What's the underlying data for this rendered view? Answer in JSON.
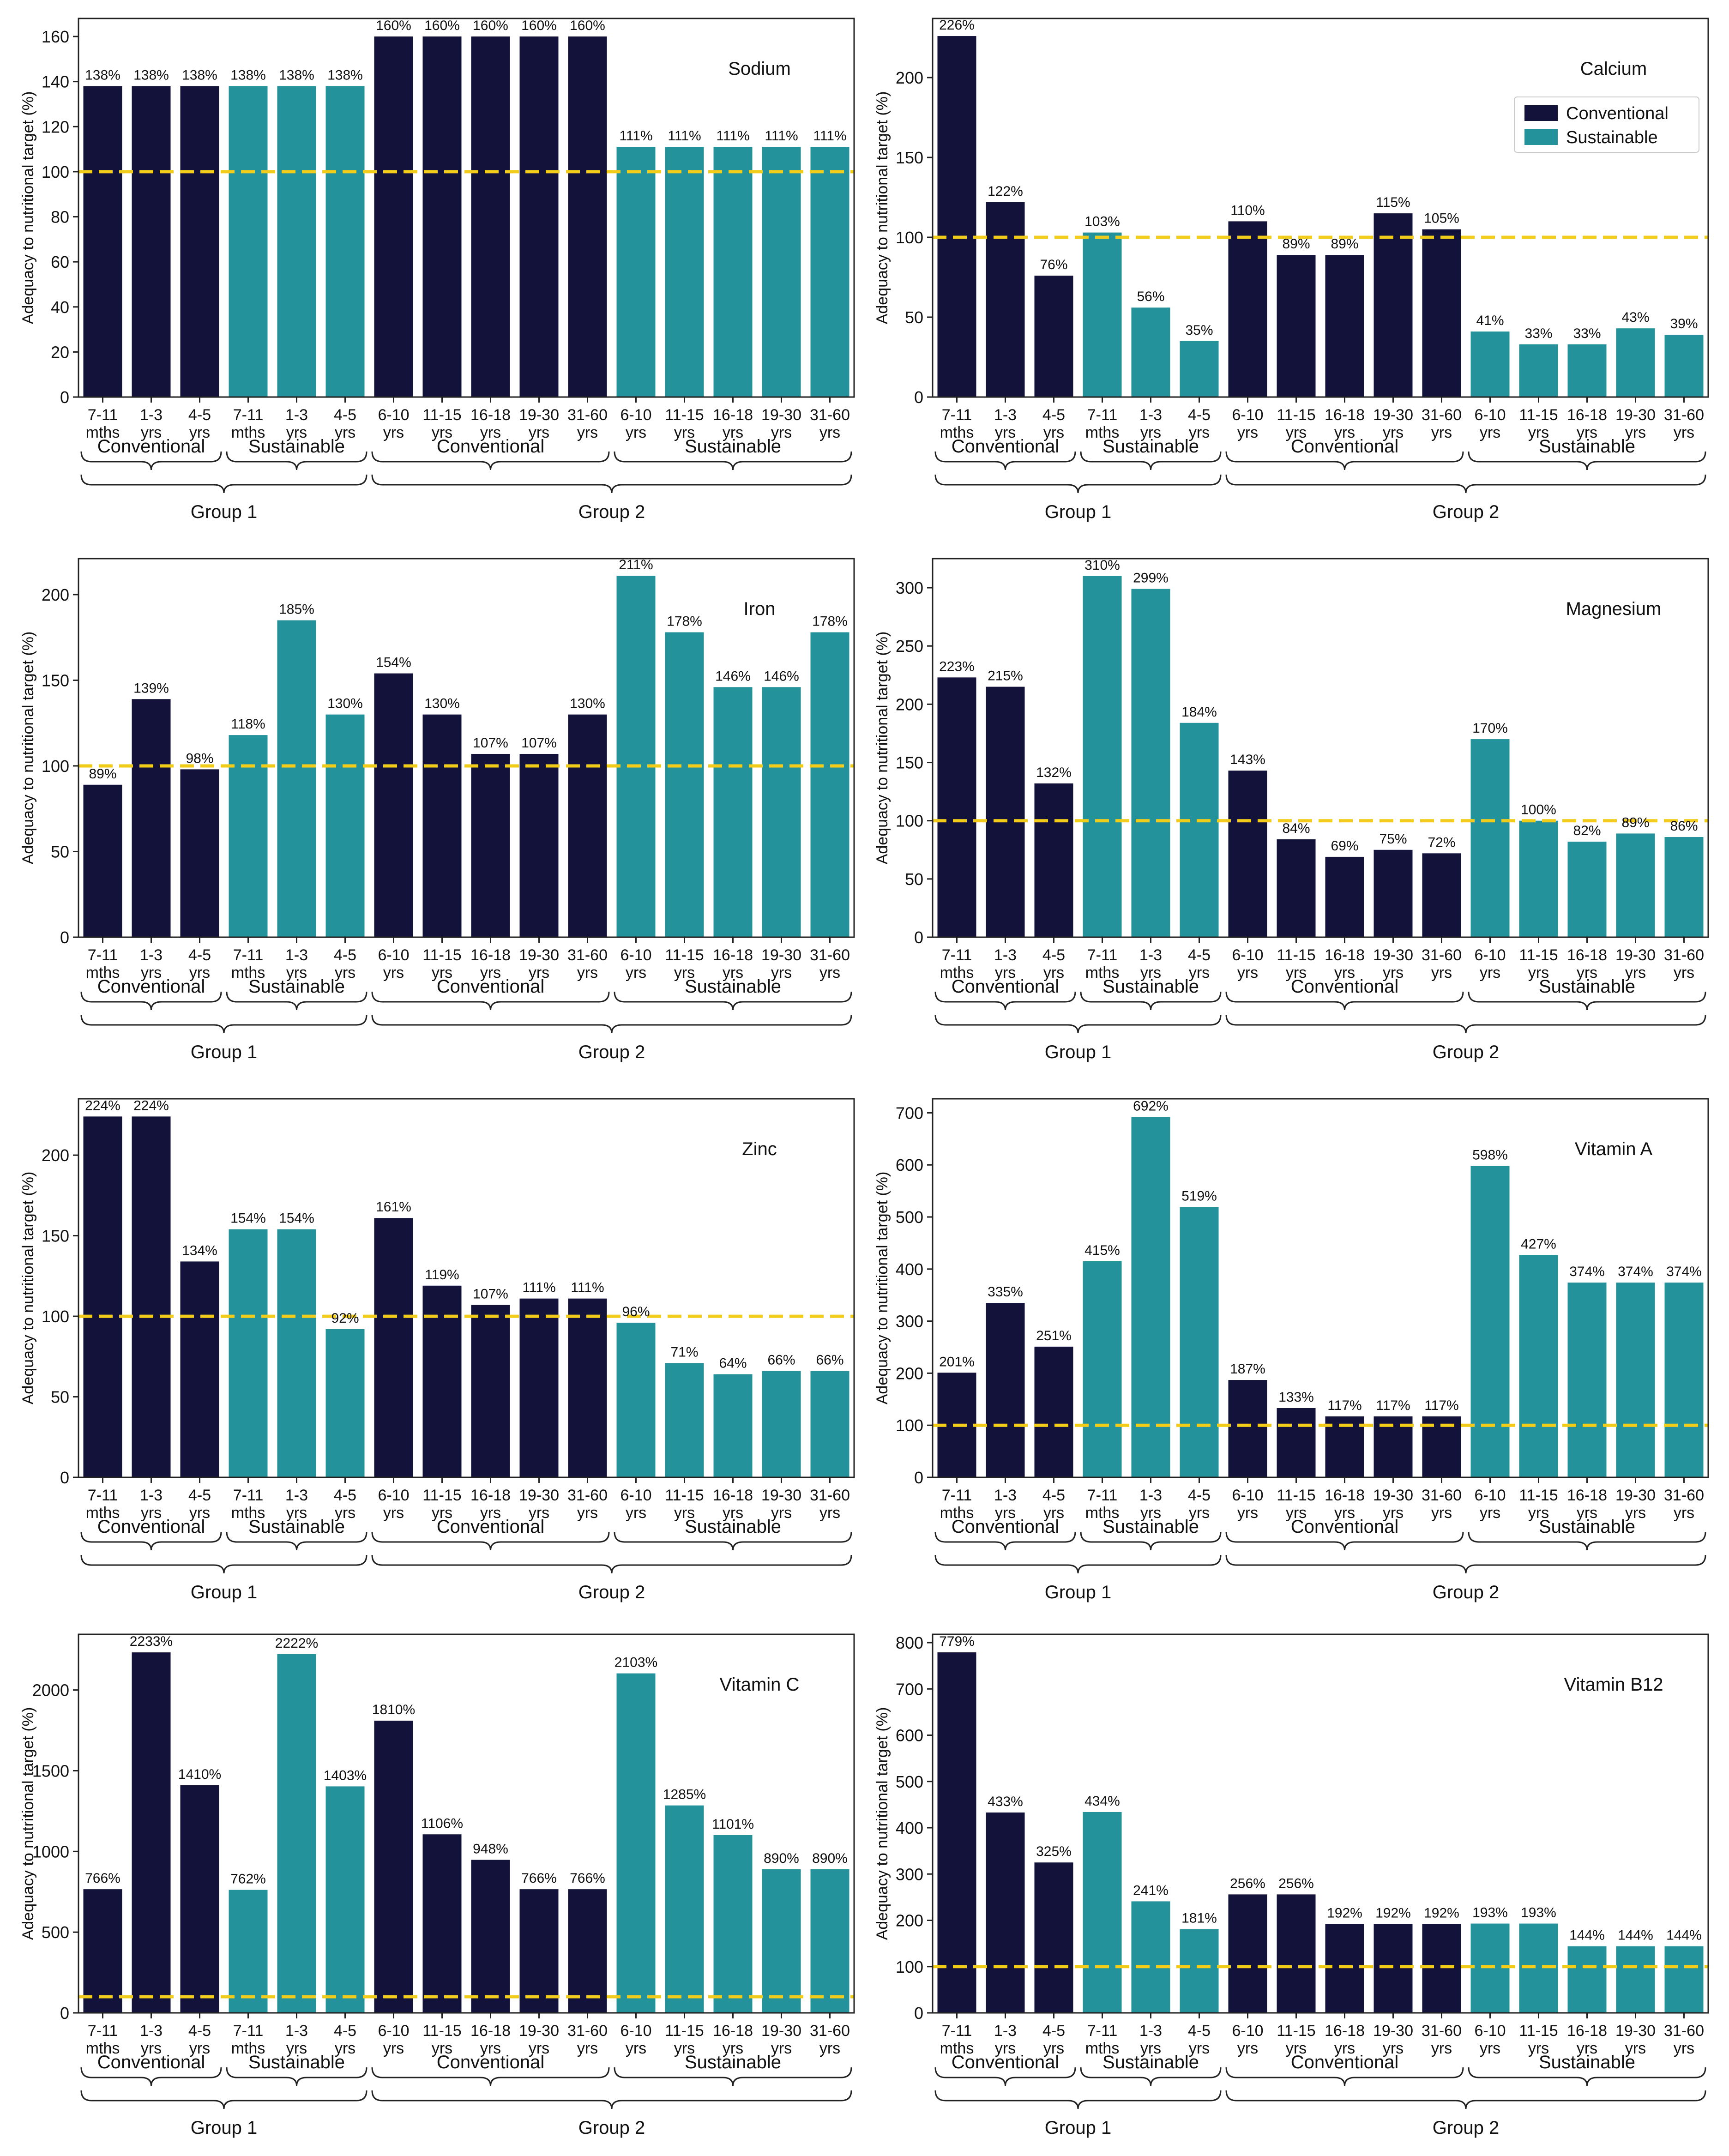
{
  "colors": {
    "conventional": "#12123a",
    "sustainable": "#23929b",
    "target_line": "#f2cc1b",
    "axis": "#222222"
  },
  "legend": {
    "conventional": "Conventional",
    "sustainable": "Sustainable"
  },
  "common": {
    "ylabel": "Adequacy to nutritional target (%)",
    "tick_lines": [
      [
        "7-11",
        "mths"
      ],
      [
        "1-3",
        "yrs"
      ],
      [
        "4-5",
        "yrs"
      ],
      [
        "7-11",
        "mths"
      ],
      [
        "1-3",
        "yrs"
      ],
      [
        "4-5",
        "yrs"
      ],
      [
        "6-10",
        "yrs"
      ],
      [
        "11-15",
        "yrs"
      ],
      [
        "16-18",
        "yrs"
      ],
      [
        "19-30",
        "yrs"
      ],
      [
        "31-60",
        "yrs"
      ],
      [
        "6-10",
        "yrs"
      ],
      [
        "11-15",
        "yrs"
      ],
      [
        "16-18",
        "yrs"
      ],
      [
        "19-30",
        "yrs"
      ],
      [
        "31-60",
        "yrs"
      ]
    ],
    "diet": [
      "conv",
      "conv",
      "conv",
      "sust",
      "sust",
      "sust",
      "conv",
      "conv",
      "conv",
      "conv",
      "conv",
      "sust",
      "sust",
      "sust",
      "sust",
      "sust"
    ],
    "subgroups": [
      {
        "label": "Conventional",
        "from": 0,
        "to": 2
      },
      {
        "label": "Sustainable",
        "from": 3,
        "to": 5
      },
      {
        "label": "Conventional",
        "from": 6,
        "to": 10
      },
      {
        "label": "Sustainable",
        "from": 11,
        "to": 15
      }
    ],
    "groups": [
      {
        "label": "Group 1",
        "from": 0,
        "to": 5
      },
      {
        "label": "Group 2",
        "from": 6,
        "to": 15
      }
    ]
  },
  "chart_data": [
    {
      "type": "bar",
      "title": "Sodium",
      "ylabel": "Adequacy to nutritional target (%)",
      "target": 100,
      "ylim": [
        0,
        168
      ],
      "yticks": [
        0,
        20,
        40,
        60,
        80,
        100,
        120,
        140,
        160
      ],
      "values": [
        138,
        138,
        138,
        138,
        138,
        138,
        160,
        160,
        160,
        160,
        160,
        111,
        111,
        111,
        111,
        111
      ],
      "labels": [
        "138%",
        "138%",
        "138%",
        "138%",
        "138%",
        "138%",
        "160%",
        "160%",
        "160%",
        "160%",
        "160%",
        "111%",
        "111%",
        "111%",
        "111%",
        "111%"
      ],
      "legend": false
    },
    {
      "type": "bar",
      "title": "Calcium",
      "ylabel": "Adequacy to nutritional target (%)",
      "target": 100,
      "ylim": [
        0,
        237
      ],
      "yticks": [
        0,
        50,
        100,
        150,
        200
      ],
      "values": [
        226,
        122,
        76,
        103,
        56,
        35,
        110,
        89,
        89,
        115,
        105,
        41,
        33,
        33,
        43,
        39
      ],
      "labels": [
        "226%",
        "122%",
        "76%",
        "103%",
        "56%",
        "35%",
        "110%",
        "89%",
        "89%",
        "115%",
        "105%",
        "41%",
        "33%",
        "33%",
        "43%",
        "39%"
      ],
      "legend": true
    },
    {
      "type": "bar",
      "title": "Iron",
      "ylabel": "Adequacy to nutritional target (%)",
      "target": 100,
      "ylim": [
        0,
        221
      ],
      "yticks": [
        0,
        50,
        100,
        150,
        200
      ],
      "values": [
        89,
        139,
        98,
        118,
        185,
        130,
        154,
        130,
        107,
        107,
        130,
        211,
        178,
        146,
        146,
        178
      ],
      "labels": [
        "89%",
        "139%",
        "98%",
        "118%",
        "185%",
        "130%",
        "154%",
        "130%",
        "107%",
        "107%",
        "130%",
        "211%",
        "178%",
        "146%",
        "146%",
        "178%"
      ],
      "legend": false
    },
    {
      "type": "bar",
      "title": "Magnesium",
      "ylabel": "Adequacy to nutritional target (%)",
      "target": 100,
      "ylim": [
        0,
        325
      ],
      "yticks": [
        0,
        50,
        100,
        150,
        200,
        250,
        300
      ],
      "values": [
        223,
        215,
        132,
        310,
        299,
        184,
        143,
        84,
        69,
        75,
        72,
        170,
        100,
        82,
        89,
        86
      ],
      "labels": [
        "223%",
        "215%",
        "132%",
        "310%",
        "299%",
        "184%",
        "143%",
        "84%",
        "69%",
        "75%",
        "72%",
        "170%",
        "100%",
        "82%",
        "89%",
        "86%"
      ],
      "legend": false
    },
    {
      "type": "bar",
      "title": "Zinc",
      "ylabel": "Adequacy to nutritional target (%)",
      "target": 100,
      "ylim": [
        0,
        235
      ],
      "yticks": [
        0,
        50,
        100,
        150,
        200
      ],
      "values": [
        224,
        224,
        134,
        154,
        154,
        92,
        161,
        119,
        107,
        111,
        111,
        96,
        71,
        64,
        66,
        66
      ],
      "labels": [
        "224%",
        "224%",
        "134%",
        "154%",
        "154%",
        "92%",
        "161%",
        "119%",
        "107%",
        "111%",
        "111%",
        "96%",
        "71%",
        "64%",
        "66%",
        "66%"
      ],
      "legend": false
    },
    {
      "type": "bar",
      "title": "Vitamin A",
      "ylabel": "Adequacy to nutritional target (%)",
      "target": 100,
      "ylim": [
        0,
        727
      ],
      "yticks": [
        0,
        100,
        200,
        300,
        400,
        500,
        600,
        700
      ],
      "values": [
        201,
        335,
        251,
        415,
        692,
        519,
        187,
        133,
        117,
        117,
        117,
        598,
        427,
        374,
        374,
        374
      ],
      "labels": [
        "201%",
        "335%",
        "251%",
        "415%",
        "692%",
        "519%",
        "187%",
        "133%",
        "117%",
        "117%",
        "117%",
        "598%",
        "427%",
        "374%",
        "374%",
        "374%"
      ],
      "legend": false
    },
    {
      "type": "bar",
      "title": "Vitamin C",
      "ylabel": "Adequacy to nutritional target (%)",
      "target": 100,
      "ylim": [
        0,
        2345
      ],
      "yticks": [
        0,
        500,
        1000,
        1500,
        2000
      ],
      "values": [
        766,
        2233,
        1410,
        762,
        2222,
        1403,
        1810,
        1106,
        948,
        766,
        766,
        2103,
        1285,
        1101,
        890,
        890
      ],
      "labels": [
        "766%",
        "2233%",
        "1410%",
        "762%",
        "2222%",
        "1403%",
        "1810%",
        "1106%",
        "948%",
        "766%",
        "766%",
        "2103%",
        "1285%",
        "1101%",
        "890%",
        "890%"
      ],
      "legend": false
    },
    {
      "type": "bar",
      "title": "Vitamin B12",
      "ylabel": "Adequacy to nutritional target (%)",
      "target": 100,
      "ylim": [
        0,
        818
      ],
      "yticks": [
        0,
        100,
        200,
        300,
        400,
        500,
        600,
        700,
        800
      ],
      "values": [
        779,
        433,
        325,
        434,
        241,
        181,
        256,
        256,
        192,
        192,
        192,
        193,
        193,
        144,
        144,
        144
      ],
      "labels": [
        "779%",
        "433%",
        "325%",
        "434%",
        "241%",
        "181%",
        "256%",
        "256%",
        "192%",
        "192%",
        "192%",
        "193%",
        "193%",
        "144%",
        "144%",
        "144%"
      ],
      "legend": false
    }
  ]
}
